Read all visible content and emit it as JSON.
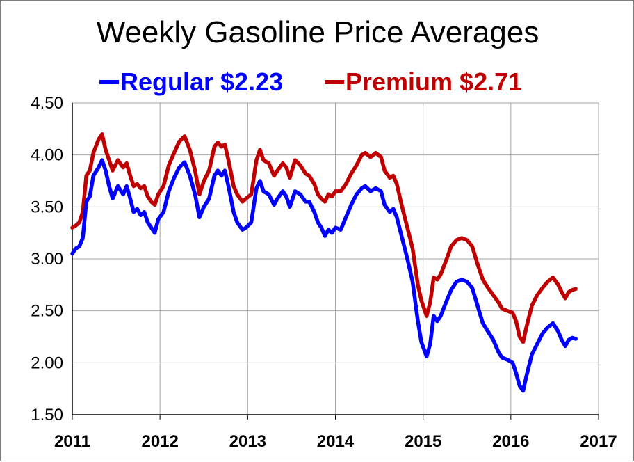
{
  "chart_data": {
    "type": "line",
    "title": "Weekly Gasoline  Price Averages",
    "xlim": [
      2011,
      2017
    ],
    "ylim": [
      1.5,
      4.5
    ],
    "yticks": [
      "1.50",
      "2.00",
      "2.50",
      "3.00",
      "3.50",
      "4.00",
      "4.50"
    ],
    "xticks": [
      "2011",
      "2012",
      "2013",
      "2014",
      "2015",
      "2016",
      "2017"
    ],
    "grid": true,
    "legend_position": "top",
    "series": [
      {
        "name": "Regular",
        "legend_label": "Regular  $2.23",
        "color": "#0000ff",
        "points": [
          [
            2011.0,
            3.05
          ],
          [
            2011.04,
            3.1
          ],
          [
            2011.08,
            3.12
          ],
          [
            2011.12,
            3.2
          ],
          [
            2011.16,
            3.55
          ],
          [
            2011.2,
            3.6
          ],
          [
            2011.24,
            3.8
          ],
          [
            2011.3,
            3.88
          ],
          [
            2011.34,
            3.95
          ],
          [
            2011.38,
            3.85
          ],
          [
            2011.42,
            3.7
          ],
          [
            2011.46,
            3.58
          ],
          [
            2011.52,
            3.7
          ],
          [
            2011.58,
            3.62
          ],
          [
            2011.62,
            3.7
          ],
          [
            2011.66,
            3.58
          ],
          [
            2011.7,
            3.45
          ],
          [
            2011.74,
            3.48
          ],
          [
            2011.78,
            3.42
          ],
          [
            2011.82,
            3.45
          ],
          [
            2011.86,
            3.35
          ],
          [
            2011.9,
            3.3
          ],
          [
            2011.94,
            3.25
          ],
          [
            2011.98,
            3.38
          ],
          [
            2012.04,
            3.45
          ],
          [
            2012.1,
            3.65
          ],
          [
            2012.16,
            3.78
          ],
          [
            2012.22,
            3.88
          ],
          [
            2012.28,
            3.93
          ],
          [
            2012.34,
            3.8
          ],
          [
            2012.4,
            3.62
          ],
          [
            2012.45,
            3.4
          ],
          [
            2012.5,
            3.5
          ],
          [
            2012.56,
            3.58
          ],
          [
            2012.62,
            3.8
          ],
          [
            2012.66,
            3.85
          ],
          [
            2012.7,
            3.8
          ],
          [
            2012.74,
            3.85
          ],
          [
            2012.78,
            3.7
          ],
          [
            2012.84,
            3.45
          ],
          [
            2012.88,
            3.35
          ],
          [
            2012.94,
            3.28
          ],
          [
            2012.98,
            3.3
          ],
          [
            2013.04,
            3.35
          ],
          [
            2013.1,
            3.68
          ],
          [
            2013.14,
            3.75
          ],
          [
            2013.18,
            3.65
          ],
          [
            2013.24,
            3.62
          ],
          [
            2013.3,
            3.52
          ],
          [
            2013.34,
            3.58
          ],
          [
            2013.4,
            3.65
          ],
          [
            2013.44,
            3.6
          ],
          [
            2013.48,
            3.5
          ],
          [
            2013.54,
            3.65
          ],
          [
            2013.6,
            3.62
          ],
          [
            2013.66,
            3.55
          ],
          [
            2013.7,
            3.55
          ],
          [
            2013.76,
            3.45
          ],
          [
            2013.8,
            3.35
          ],
          [
            2013.84,
            3.3
          ],
          [
            2013.88,
            3.22
          ],
          [
            2013.92,
            3.28
          ],
          [
            2013.96,
            3.25
          ],
          [
            2014.0,
            3.3
          ],
          [
            2014.06,
            3.28
          ],
          [
            2014.12,
            3.4
          ],
          [
            2014.18,
            3.52
          ],
          [
            2014.24,
            3.62
          ],
          [
            2014.3,
            3.68
          ],
          [
            2014.34,
            3.7
          ],
          [
            2014.4,
            3.65
          ],
          [
            2014.46,
            3.68
          ],
          [
            2014.52,
            3.65
          ],
          [
            2014.56,
            3.52
          ],
          [
            2014.62,
            3.45
          ],
          [
            2014.66,
            3.48
          ],
          [
            2014.7,
            3.4
          ],
          [
            2014.76,
            3.2
          ],
          [
            2014.82,
            3.0
          ],
          [
            2014.88,
            2.78
          ],
          [
            2014.94,
            2.4
          ],
          [
            2014.98,
            2.2
          ],
          [
            2015.04,
            2.06
          ],
          [
            2015.08,
            2.18
          ],
          [
            2015.12,
            2.45
          ],
          [
            2015.16,
            2.4
          ],
          [
            2015.2,
            2.45
          ],
          [
            2015.26,
            2.58
          ],
          [
            2015.32,
            2.7
          ],
          [
            2015.38,
            2.78
          ],
          [
            2015.44,
            2.8
          ],
          [
            2015.5,
            2.78
          ],
          [
            2015.56,
            2.72
          ],
          [
            2015.62,
            2.55
          ],
          [
            2015.68,
            2.38
          ],
          [
            2015.74,
            2.3
          ],
          [
            2015.8,
            2.22
          ],
          [
            2015.86,
            2.1
          ],
          [
            2015.9,
            2.05
          ],
          [
            2015.96,
            2.03
          ],
          [
            2016.02,
            2.0
          ],
          [
            2016.06,
            1.9
          ],
          [
            2016.1,
            1.78
          ],
          [
            2016.14,
            1.73
          ],
          [
            2016.18,
            1.88
          ],
          [
            2016.24,
            2.08
          ],
          [
            2016.3,
            2.18
          ],
          [
            2016.36,
            2.28
          ],
          [
            2016.42,
            2.34
          ],
          [
            2016.48,
            2.38
          ],
          [
            2016.54,
            2.3
          ],
          [
            2016.58,
            2.22
          ],
          [
            2016.62,
            2.16
          ],
          [
            2016.66,
            2.22
          ],
          [
            2016.7,
            2.24
          ],
          [
            2016.74,
            2.23
          ]
        ]
      },
      {
        "name": "Premium",
        "legend_label": "Premium  $2.71",
        "color": "#c00000",
        "points": [
          [
            2011.0,
            3.3
          ],
          [
            2011.04,
            3.32
          ],
          [
            2011.08,
            3.35
          ],
          [
            2011.12,
            3.45
          ],
          [
            2011.16,
            3.8
          ],
          [
            2011.2,
            3.85
          ],
          [
            2011.24,
            4.02
          ],
          [
            2011.3,
            4.15
          ],
          [
            2011.34,
            4.2
          ],
          [
            2011.38,
            4.05
          ],
          [
            2011.42,
            3.95
          ],
          [
            2011.46,
            3.85
          ],
          [
            2011.52,
            3.95
          ],
          [
            2011.58,
            3.88
          ],
          [
            2011.62,
            3.92
          ],
          [
            2011.66,
            3.8
          ],
          [
            2011.7,
            3.7
          ],
          [
            2011.74,
            3.72
          ],
          [
            2011.78,
            3.68
          ],
          [
            2011.82,
            3.7
          ],
          [
            2011.86,
            3.6
          ],
          [
            2011.9,
            3.55
          ],
          [
            2011.94,
            3.52
          ],
          [
            2011.98,
            3.62
          ],
          [
            2012.04,
            3.7
          ],
          [
            2012.1,
            3.9
          ],
          [
            2012.16,
            4.02
          ],
          [
            2012.22,
            4.13
          ],
          [
            2012.28,
            4.18
          ],
          [
            2012.34,
            4.05
          ],
          [
            2012.4,
            3.85
          ],
          [
            2012.45,
            3.62
          ],
          [
            2012.5,
            3.75
          ],
          [
            2012.56,
            3.85
          ],
          [
            2012.62,
            4.08
          ],
          [
            2012.66,
            4.12
          ],
          [
            2012.7,
            4.08
          ],
          [
            2012.74,
            4.1
          ],
          [
            2012.78,
            3.95
          ],
          [
            2012.84,
            3.7
          ],
          [
            2012.88,
            3.62
          ],
          [
            2012.94,
            3.55
          ],
          [
            2012.98,
            3.58
          ],
          [
            2013.04,
            3.62
          ],
          [
            2013.1,
            3.95
          ],
          [
            2013.14,
            4.05
          ],
          [
            2013.18,
            3.95
          ],
          [
            2013.24,
            3.92
          ],
          [
            2013.3,
            3.8
          ],
          [
            2013.34,
            3.85
          ],
          [
            2013.4,
            3.92
          ],
          [
            2013.44,
            3.88
          ],
          [
            2013.48,
            3.78
          ],
          [
            2013.54,
            3.95
          ],
          [
            2013.6,
            3.9
          ],
          [
            2013.66,
            3.82
          ],
          [
            2013.7,
            3.8
          ],
          [
            2013.76,
            3.72
          ],
          [
            2013.8,
            3.62
          ],
          [
            2013.84,
            3.58
          ],
          [
            2013.88,
            3.55
          ],
          [
            2013.92,
            3.62
          ],
          [
            2013.96,
            3.6
          ],
          [
            2014.0,
            3.65
          ],
          [
            2014.06,
            3.65
          ],
          [
            2014.12,
            3.72
          ],
          [
            2014.18,
            3.82
          ],
          [
            2014.24,
            3.9
          ],
          [
            2014.3,
            4.0
          ],
          [
            2014.34,
            4.02
          ],
          [
            2014.4,
            3.98
          ],
          [
            2014.46,
            4.02
          ],
          [
            2014.52,
            3.98
          ],
          [
            2014.56,
            3.85
          ],
          [
            2014.62,
            3.78
          ],
          [
            2014.66,
            3.8
          ],
          [
            2014.7,
            3.72
          ],
          [
            2014.76,
            3.5
          ],
          [
            2014.82,
            3.3
          ],
          [
            2014.88,
            3.1
          ],
          [
            2014.94,
            2.75
          ],
          [
            2014.98,
            2.6
          ],
          [
            2015.04,
            2.45
          ],
          [
            2015.08,
            2.58
          ],
          [
            2015.12,
            2.82
          ],
          [
            2015.16,
            2.8
          ],
          [
            2015.2,
            2.85
          ],
          [
            2015.26,
            2.98
          ],
          [
            2015.32,
            3.12
          ],
          [
            2015.38,
            3.18
          ],
          [
            2015.44,
            3.2
          ],
          [
            2015.5,
            3.18
          ],
          [
            2015.56,
            3.12
          ],
          [
            2015.62,
            2.95
          ],
          [
            2015.68,
            2.8
          ],
          [
            2015.74,
            2.72
          ],
          [
            2015.8,
            2.65
          ],
          [
            2015.86,
            2.58
          ],
          [
            2015.9,
            2.52
          ],
          [
            2015.96,
            2.5
          ],
          [
            2016.02,
            2.48
          ],
          [
            2016.06,
            2.4
          ],
          [
            2016.1,
            2.25
          ],
          [
            2016.14,
            2.2
          ],
          [
            2016.18,
            2.35
          ],
          [
            2016.24,
            2.55
          ],
          [
            2016.3,
            2.65
          ],
          [
            2016.36,
            2.72
          ],
          [
            2016.42,
            2.78
          ],
          [
            2016.48,
            2.82
          ],
          [
            2016.54,
            2.75
          ],
          [
            2016.58,
            2.68
          ],
          [
            2016.62,
            2.62
          ],
          [
            2016.66,
            2.68
          ],
          [
            2016.7,
            2.7
          ],
          [
            2016.74,
            2.71
          ]
        ]
      }
    ]
  }
}
